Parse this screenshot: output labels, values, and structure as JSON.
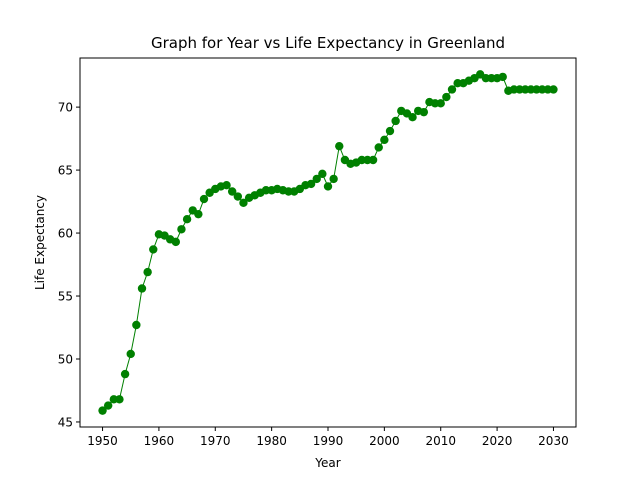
{
  "chart_data": {
    "type": "line",
    "title": "Graph for Year vs Life Expectancy in Greenland",
    "xlabel": "Year",
    "ylabel": "Life Expectancy",
    "xlim": [
      1946.0,
      2034.0
    ],
    "ylim": [
      44.6,
      73.9
    ],
    "xticks": [
      1950,
      1960,
      1970,
      1980,
      1990,
      2000,
      2010,
      2020,
      2030
    ],
    "yticks": [
      45,
      50,
      55,
      60,
      65,
      70
    ],
    "grid": false,
    "legend": "none",
    "color": "#008000",
    "marker": "circle",
    "series": [
      {
        "x": [
          1950,
          1951,
          1952,
          1953,
          1954,
          1955,
          1956,
          1957,
          1958,
          1959,
          1960,
          1961,
          1962,
          1963,
          1964,
          1965,
          1966,
          1967,
          1968,
          1969,
          1970,
          1971,
          1972,
          1973,
          1974,
          1975,
          1976,
          1977,
          1978,
          1979,
          1980,
          1981,
          1982,
          1983,
          1984,
          1985,
          1986,
          1987,
          1988,
          1989,
          1990,
          1991,
          1992,
          1993,
          1994,
          1995,
          1996,
          1997,
          1998,
          1999,
          2000,
          2001,
          2002,
          2003,
          2004,
          2005,
          2006,
          2007,
          2008,
          2009,
          2010,
          2011,
          2012,
          2013,
          2014,
          2015,
          2016,
          2017,
          2018,
          2019,
          2020,
          2021,
          2022,
          2023,
          2024,
          2025,
          2026,
          2027,
          2028,
          2029,
          2030
        ],
        "values": [
          45.9,
          46.3,
          46.8,
          46.8,
          48.8,
          50.4,
          52.7,
          55.6,
          56.9,
          58.7,
          59.9,
          59.8,
          59.5,
          59.3,
          60.3,
          61.1,
          61.8,
          61.5,
          62.7,
          63.2,
          63.5,
          63.7,
          63.8,
          63.3,
          62.9,
          62.4,
          62.8,
          63.0,
          63.2,
          63.4,
          63.4,
          63.5,
          63.4,
          63.3,
          63.3,
          63.5,
          63.8,
          63.9,
          64.3,
          64.7,
          63.7,
          64.3,
          66.9,
          65.8,
          65.5,
          65.6,
          65.8,
          65.8,
          65.8,
          66.8,
          67.4,
          68.1,
          68.9,
          69.7,
          69.5,
          69.2,
          69.7,
          69.6,
          70.4,
          70.3,
          70.3,
          70.8,
          71.4,
          71.9,
          71.9,
          72.1,
          72.3,
          72.6,
          72.3,
          72.3,
          72.3,
          72.4,
          71.3,
          71.4,
          71.4,
          71.4,
          71.4,
          71.4,
          71.4,
          71.4,
          71.4
        ]
      }
    ]
  }
}
